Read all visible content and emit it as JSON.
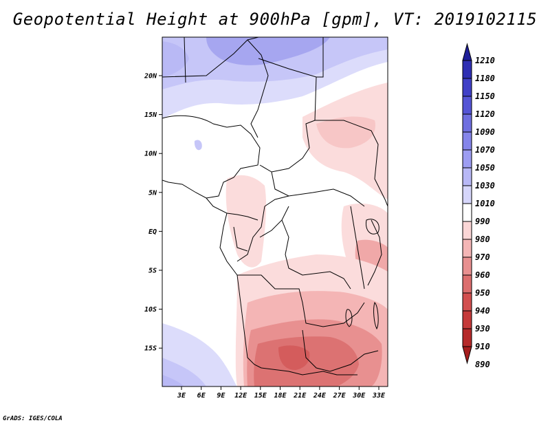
{
  "title": "Geopotential Height at 900hPa [gpm], VT: 2019102115",
  "credit": "GrADS: IGES/COLA",
  "map": {
    "lat_labels": [
      "20N",
      "15N",
      "10N",
      "5N",
      "EQ",
      "5S",
      "10S",
      "15S"
    ],
    "lon_labels": [
      "3E",
      "6E",
      "9E",
      "12E",
      "15E",
      "18E",
      "21E",
      "24E",
      "27E",
      "30E",
      "33E"
    ]
  },
  "legend": {
    "levels": [
      "1210",
      "1180",
      "1150",
      "1120",
      "1090",
      "1070",
      "1050",
      "1030",
      "1010",
      "990",
      "980",
      "970",
      "960",
      "950",
      "940",
      "930",
      "910",
      "890"
    ],
    "colors": [
      "#1f1f99",
      "#2f2fb3",
      "#4040c7",
      "#5555d6",
      "#6f6fe0",
      "#8585ea",
      "#9d9df2",
      "#b8b8f6",
      "#d6d6fb",
      "#ffffff",
      "#fbd6d6",
      "#f4b5b5",
      "#e89090",
      "#dc6e6e",
      "#d24f4f",
      "#c53a3a",
      "#b52a2a",
      "#a51d1d"
    ]
  },
  "colors": {
    "accent_blue": "#b9b9f5",
    "accent_red": "#e07a7a"
  }
}
